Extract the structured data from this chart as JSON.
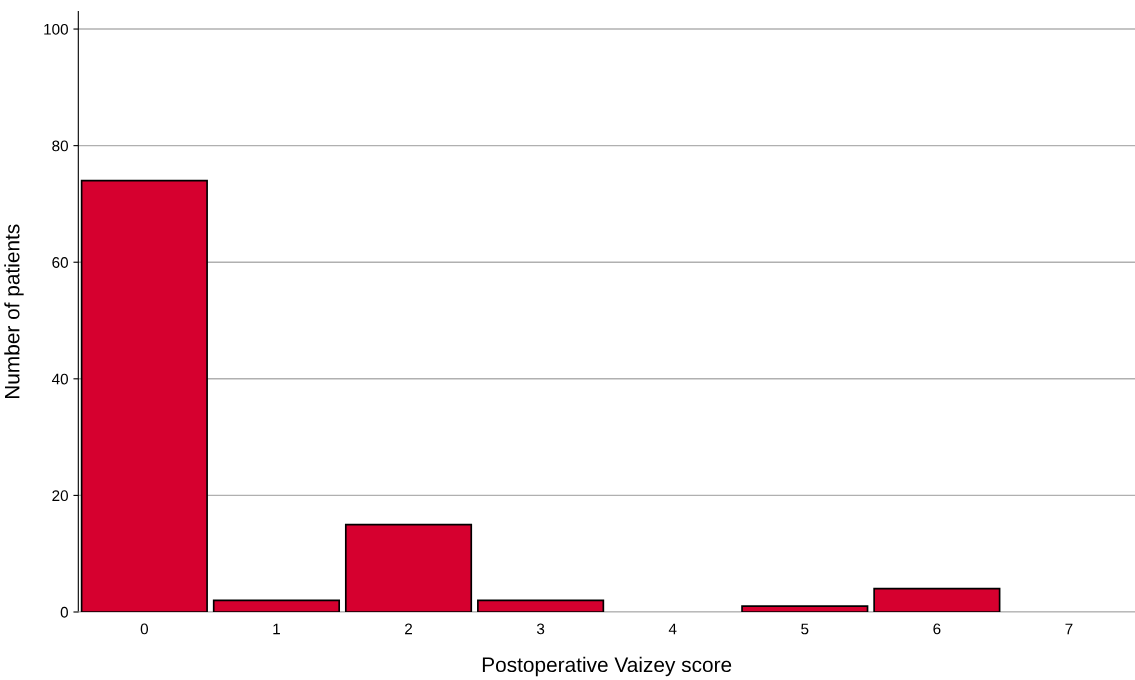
{
  "chart_data": {
    "type": "bar",
    "xlabel": "Postoperative Vaizey score",
    "ylabel": "Number of patients",
    "categories": [
      "0",
      "1",
      "2",
      "3",
      "4",
      "5",
      "6",
      "7"
    ],
    "values": [
      74,
      2,
      15,
      2,
      0,
      1,
      4,
      0
    ],
    "color": "#d6002f",
    "ylim": [
      0,
      103
    ],
    "yticks": [
      0,
      20,
      40,
      60,
      80,
      100
    ],
    "grid": "y",
    "legend": false
  }
}
